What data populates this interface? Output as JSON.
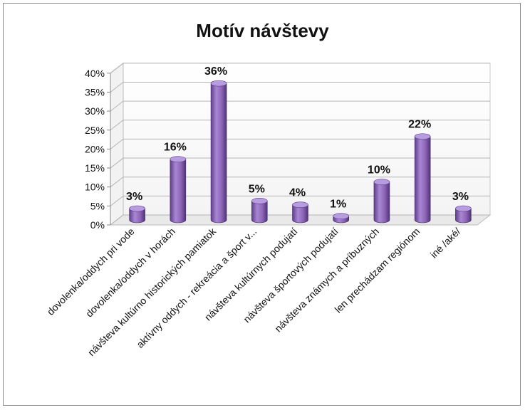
{
  "chart_data": {
    "type": "bar",
    "title": "Motív návštevy",
    "categories": [
      "dovolenka/oddych pri vode",
      "dovolenka/oddych v horách",
      "návšteva kultúrno historických pamiatok",
      "aktívny oddych - rekreácia a šport v...",
      "návšteva kultúrnych podujatí",
      "návšteva športových podujatí",
      "návšteva známych a príbuzných",
      "len prechádzam regiónom",
      "iné /aké/"
    ],
    "values": [
      3,
      16,
      36,
      5,
      4,
      1,
      10,
      22,
      3
    ],
    "data_labels": [
      "3%",
      "16%",
      "36%",
      "5%",
      "4%",
      "1%",
      "10%",
      "22%",
      "3%"
    ],
    "y_ticks": [
      "0%",
      "5%",
      "10%",
      "15%",
      "20%",
      "25%",
      "30%",
      "35%",
      "40%"
    ],
    "ylim": [
      0,
      40
    ],
    "xlabel": "",
    "ylabel": "",
    "grid": true,
    "legend": "none",
    "bar_color": "#8b63b5"
  }
}
